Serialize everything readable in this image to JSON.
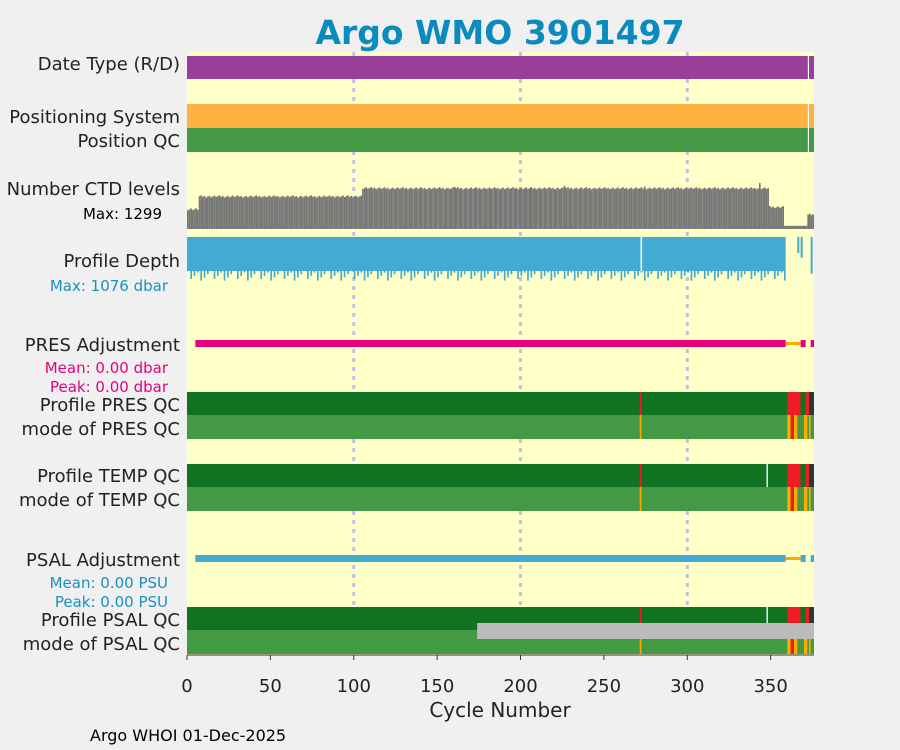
{
  "chart_data": {
    "type": "bar",
    "title": "Argo WMO 3901497",
    "xlabel": "Cycle Number",
    "xlim": [
      0,
      376
    ],
    "xticks": [
      "0",
      "50",
      "100",
      "150",
      "200",
      "250",
      "300",
      "350"
    ],
    "grid_cycles": [
      100,
      200,
      300
    ],
    "rows": [
      {
        "key": "date_type",
        "label": "Date Type (R/D)"
      },
      {
        "key": "positioning_system",
        "label": "Positioning System"
      },
      {
        "key": "position_qc",
        "label": "Position QC"
      },
      {
        "key": "ctd_levels",
        "label": "Number CTD levels",
        "note": "Max: 1299"
      },
      {
        "key": "profile_depth",
        "label": "Profile Depth",
        "note": "Max: 1076 dbar"
      },
      {
        "key": "pres_adjustment",
        "label": "PRES Adjustment",
        "notes": [
          "Mean: 0.00 dbar",
          "Peak: 0.00 dbar"
        ]
      },
      {
        "key": "profile_pres_qc",
        "label": "Profile PRES QC"
      },
      {
        "key": "mode_pres_qc",
        "label": "mode of PRES QC"
      },
      {
        "key": "profile_temp_qc",
        "label": "Profile TEMP QC"
      },
      {
        "key": "mode_temp_qc",
        "label": "mode of TEMP QC"
      },
      {
        "key": "psal_adjustment",
        "label": "PSAL Adjustment",
        "notes": [
          "Mean: 0.00 PSU",
          "Peak: 0.00 PSU"
        ]
      },
      {
        "key": "profile_psal_qc",
        "label": "Profile PSAL QC"
      },
      {
        "key": "mode_psal_qc",
        "label": "mode of PSAL QC"
      }
    ],
    "ctd_levels": {
      "max": 1299,
      "segments": [
        {
          "from": 0,
          "to": 7,
          "value": 560
        },
        {
          "from": 7,
          "to": 105,
          "value": 920
        },
        {
          "from": 105,
          "to": 349,
          "value": 1150
        },
        {
          "from": 349,
          "to": 358,
          "value": 620
        },
        {
          "from": 358,
          "to": 372,
          "value": 90
        },
        {
          "from": 372,
          "to": 376,
          "value": 420
        }
      ],
      "spikes": [
        [
          343,
          1299
        ],
        [
          274,
          1200
        ],
        [
          226,
          1210
        ],
        [
          160,
          1190
        ],
        [
          110,
          1180
        ]
      ]
    },
    "profile_depth": {
      "max_dbar": 1076,
      "main_range": [
        0,
        359
      ],
      "gap_cycle": 272,
      "late_bars": [
        [
          366,
          0.35
        ],
        [
          368,
          0.45
        ],
        [
          374,
          0.8
        ]
      ]
    },
    "colors": {
      "background": "#ffffc8",
      "date_type": "#993e99",
      "positioning": "#ffb142",
      "qc_good": "#449944",
      "qc_profile_good": "#117222",
      "qc_bad": "#ee1c24",
      "qc_probably_bad": "#ffaa00",
      "ctd": "#777777",
      "depth": "#43aad2",
      "pres_adj": "#e5007e",
      "psal_adj": "#43aad2",
      "pres_note": "#e5007e",
      "psal_note": "#1a90c0",
      "depth_note": "#1a90c0",
      "title": "#0b8bbd",
      "grid": "#c0c0e8",
      "mode_psal_gray": "#bbbbbb"
    }
  },
  "footer": "Argo WHOI 01-Dec-2025"
}
